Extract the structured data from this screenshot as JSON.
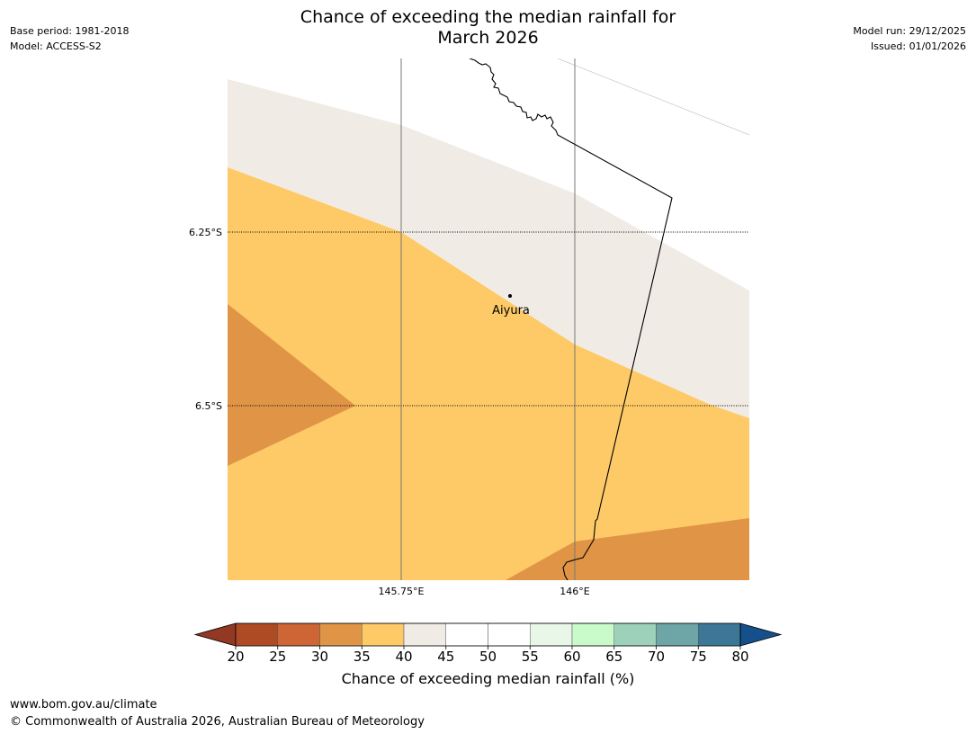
{
  "header": {
    "title_line1": "Chance of exceeding the median rainfall for",
    "title_line2": "March 2026",
    "base_period": "Base period: 1981-2018",
    "model": "Model: ACCESS-S2",
    "model_run": "Model run: 29/12/2025",
    "issued": "Issued: 01/01/2026"
  },
  "map": {
    "lat_labels": [
      "6.25°S",
      "6.5°S"
    ],
    "lon_labels": [
      "145.75°E",
      "146°E"
    ],
    "place_name": "Aiyura"
  },
  "colorbar": {
    "ticks": [
      "20",
      "25",
      "30",
      "35",
      "40",
      "45",
      "50",
      "55",
      "60",
      "65",
      "70",
      "75",
      "80"
    ],
    "colors": [
      "#ae4a24",
      "#cd6534",
      "#e09446",
      "#fdca67",
      "#f1ebe5",
      "#ffffff",
      "#ffffff",
      "#e8f7e8",
      "#c9fac9",
      "#9dd1b9",
      "#6ea5a6",
      "#3d7797"
    ],
    "under_color": "#923823",
    "over_color": "#16508c",
    "label": "Chance of exceeding median rainfall (%)"
  },
  "footer": {
    "url": "www.bom.gov.au/climate",
    "copyright": "© Commonwealth of Australia 2026, Australian Bureau of Meteorology"
  }
}
